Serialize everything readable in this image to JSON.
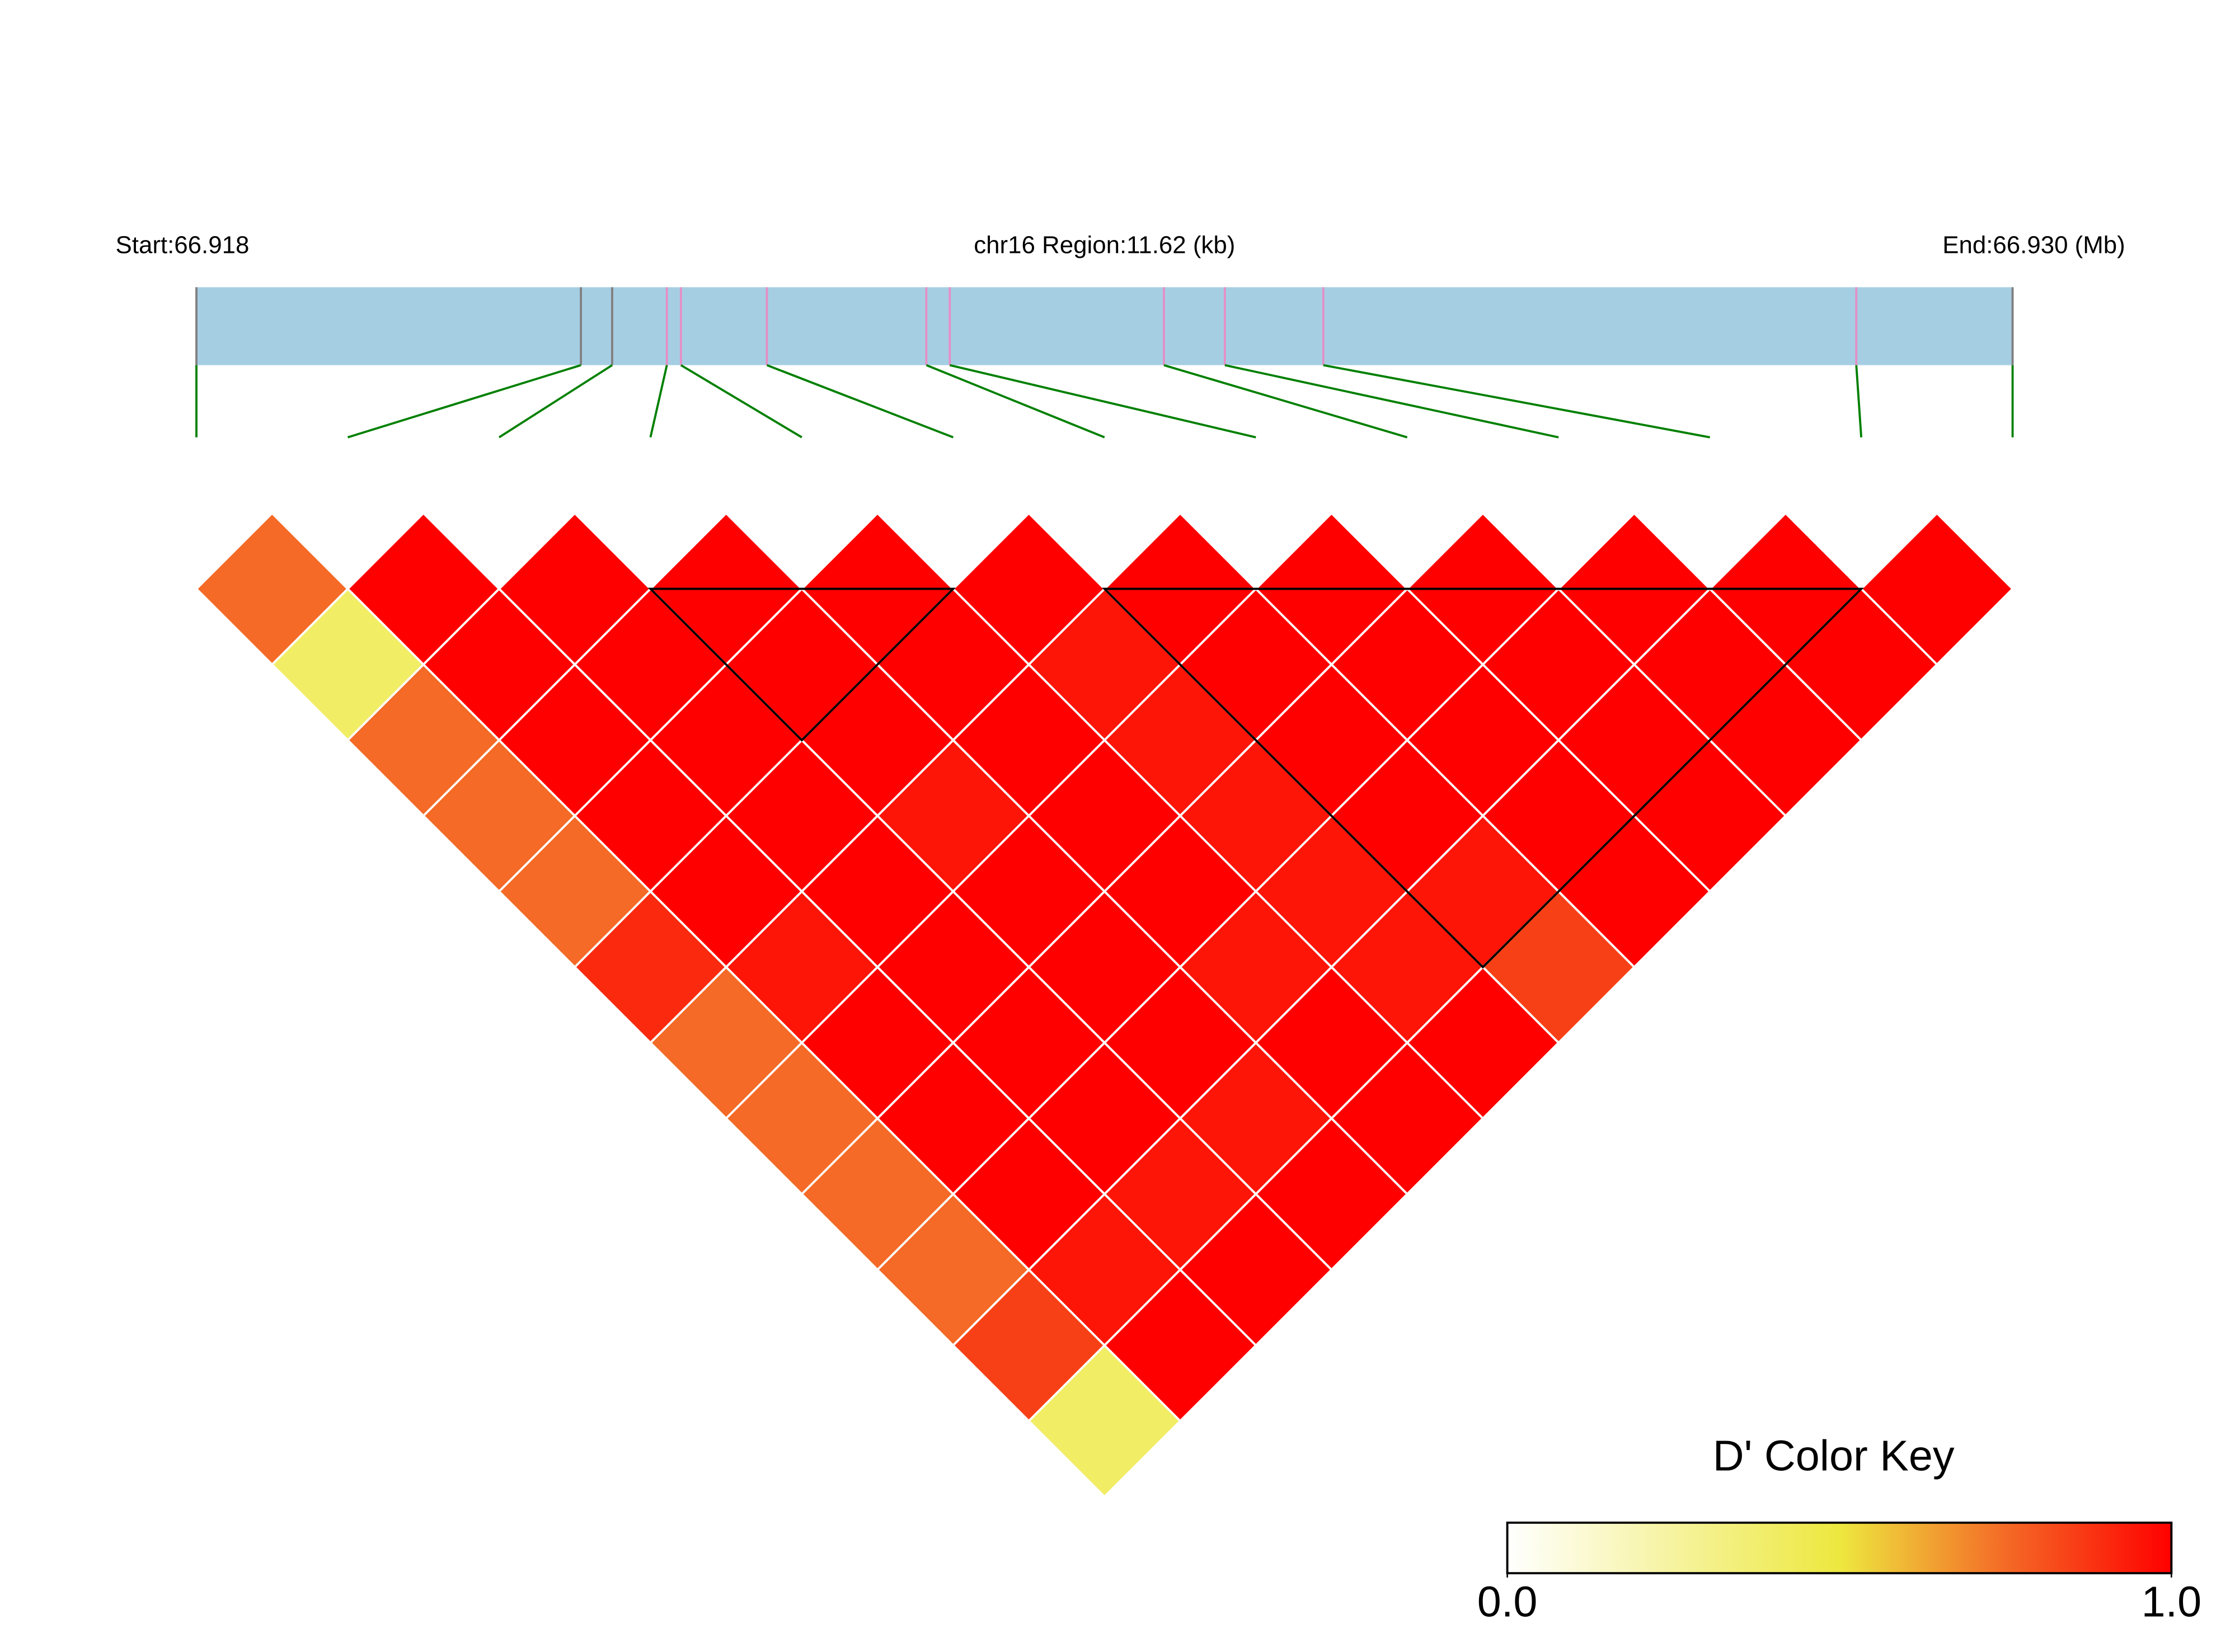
{
  "chart_data": {
    "type": "ld-heatmap",
    "start_label": "Start:66.918",
    "region_label": "chr16 Region:11.62 (kb)",
    "end_label": "End:66.930 (Mb)",
    "xlim": [
      0,
      11.62
    ],
    "positions": [
      0,
      2.46,
      2.66,
      3.01,
      3.1,
      3.65,
      4.67,
      4.82,
      6.19,
      6.58,
      7.21,
      10.62,
      11.62
    ],
    "marker_colors": [
      "#808080",
      "#808080",
      "#808080",
      "#e58fc6",
      "#e58fc6",
      "#e58fc6",
      "#e58fc6",
      "#e58fc6",
      "#e58fc6",
      "#e58fc6",
      "#e58fc6",
      "#e58fc6",
      "#808080"
    ],
    "bar_color": "#a6cee3",
    "connector_color": "#008000",
    "dprime": [
      [
        0.75,
        1,
        1,
        1,
        1,
        1,
        1,
        1,
        1,
        1,
        1,
        1
      ],
      [
        0.4,
        1,
        1,
        1,
        1,
        0.95,
        1,
        1,
        1,
        1,
        1
      ],
      [
        0.75,
        1,
        1,
        1,
        1,
        0.95,
        1,
        1,
        1,
        1
      ],
      [
        0.75,
        1,
        1,
        0.95,
        1,
        0.95,
        1,
        1,
        1
      ],
      [
        0.75,
        1,
        1,
        1,
        1,
        0.95,
        0.95,
        1
      ],
      [
        0.9,
        0.95,
        1,
        1,
        0.95,
        0.95,
        0.85
      ],
      [
        0.75,
        1,
        1,
        1,
        1,
        1
      ],
      [
        0.75,
        1,
        1,
        0.95,
        1
      ],
      [
        0.75,
        1,
        0.95,
        1
      ],
      [
        0.75,
        0.95,
        1
      ],
      [
        0.85,
        1
      ],
      [
        0.4
      ]
    ],
    "blocks": [
      [
        3,
        5
      ],
      [
        6,
        11
      ]
    ],
    "color_key": {
      "title": "D' Color Key",
      "lim": [
        0,
        1
      ],
      "ticks": [
        {
          "value": 0,
          "label": "0.0"
        },
        {
          "value": 1,
          "label": "1.0"
        }
      ],
      "stops": [
        [
          0,
          "#ffffff"
        ],
        [
          0.5,
          "#ede83f"
        ],
        [
          0.75,
          "#f46a26"
        ],
        [
          1,
          "#ff0000"
        ]
      ]
    }
  }
}
